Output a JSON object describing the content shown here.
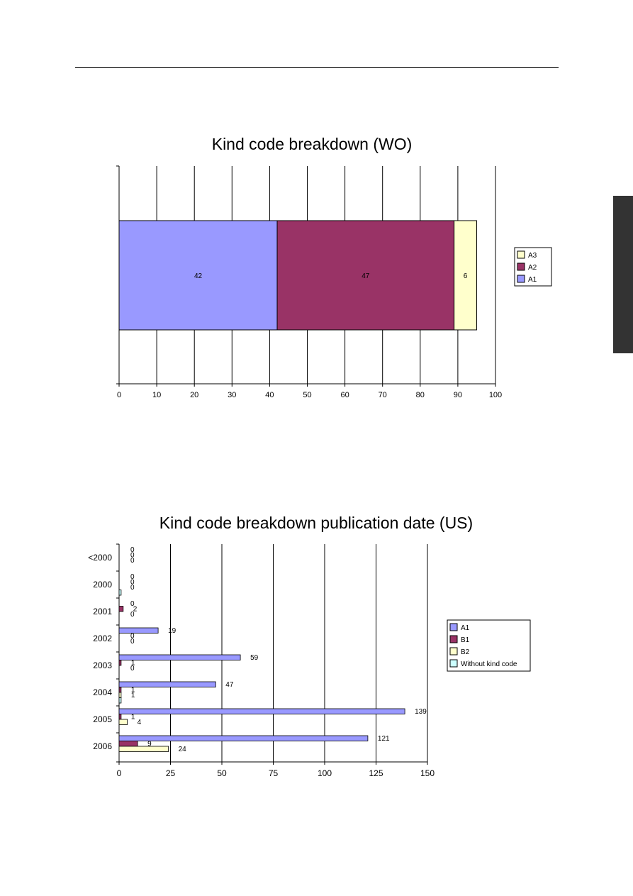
{
  "chart_data": [
    {
      "type": "bar",
      "orientation": "horizontal",
      "stacked": true,
      "title": "Kind code breakdown (WO)",
      "categories": [
        ""
      ],
      "series": [
        {
          "name": "A1",
          "values": [
            42
          ],
          "color": "#9999ff"
        },
        {
          "name": "A2",
          "values": [
            47
          ],
          "color": "#993366"
        },
        {
          "name": "A3",
          "values": [
            6
          ],
          "color": "#ffffcc"
        }
      ],
      "legend_order": [
        "A3",
        "A2",
        "A1"
      ],
      "xlim": [
        0,
        100
      ],
      "xticks": [
        "0",
        "10",
        "20",
        "30",
        "40",
        "50",
        "60",
        "70",
        "80",
        "90",
        "100"
      ],
      "grid": "vertical",
      "legend": "right"
    },
    {
      "type": "bar",
      "orientation": "horizontal",
      "stacked": false,
      "title": "Kind code breakdown publication date (US)",
      "categories": [
        "<2000",
        "2000",
        "2001",
        "2002",
        "2003",
        "2004",
        "2005",
        "2006"
      ],
      "series": [
        {
          "name": "A1",
          "values": [
            0,
            0,
            0,
            19,
            59,
            47,
            139,
            121
          ],
          "color": "#9999ff"
        },
        {
          "name": "B1",
          "values": [
            0,
            0,
            2,
            0,
            1,
            1,
            1,
            9
          ],
          "color": "#993366"
        },
        {
          "name": "B2",
          "values": [
            0,
            0,
            0,
            0,
            0,
            1,
            4,
            24
          ],
          "color": "#ffffcc"
        },
        {
          "name": "Without kind code",
          "values": [
            null,
            1,
            null,
            null,
            null,
            1,
            null,
            null
          ],
          "color": "#ccffff"
        }
      ],
      "xlim": [
        0,
        150
      ],
      "xticks": [
        "0",
        "25",
        "50",
        "75",
        "100",
        "125",
        "150"
      ],
      "grid": "vertical",
      "legend": "right"
    }
  ]
}
